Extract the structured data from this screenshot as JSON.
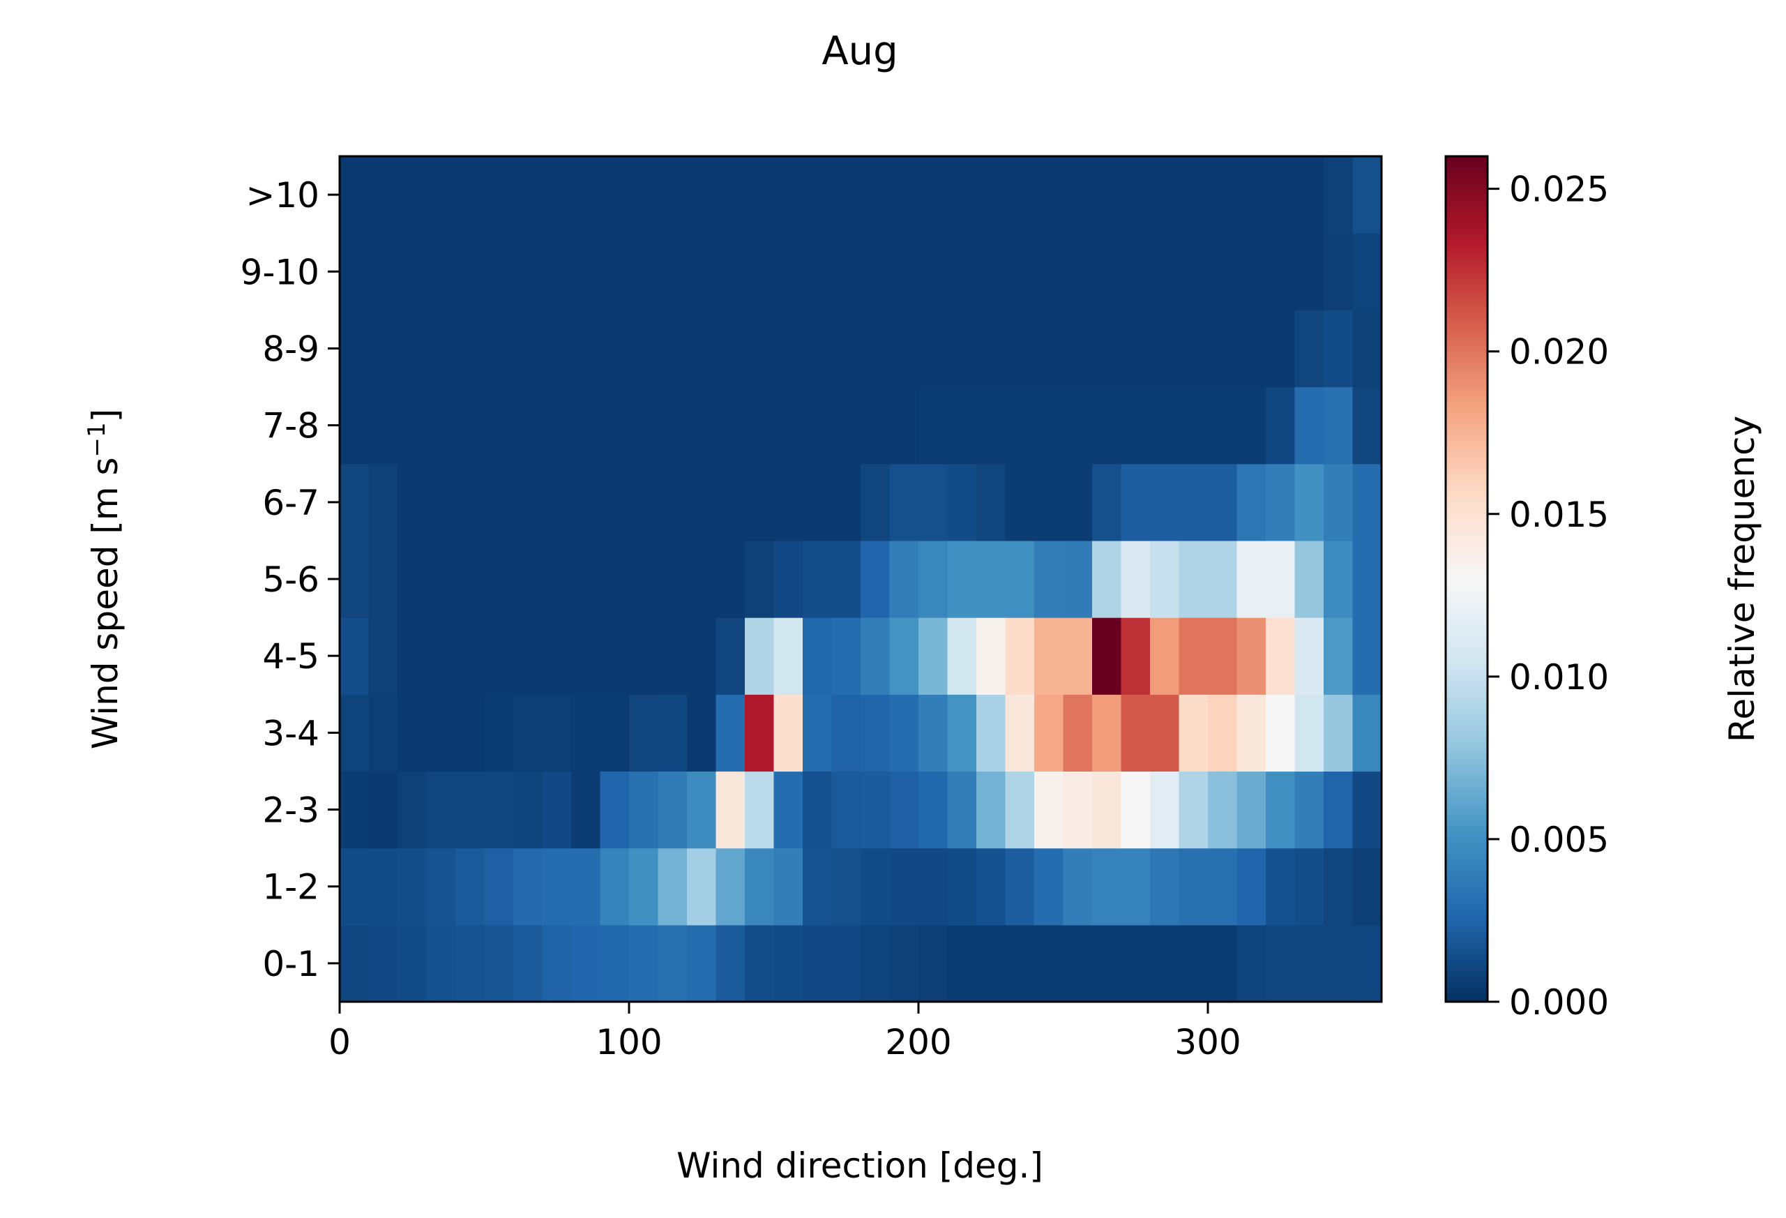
{
  "chart_data": {
    "type": "heatmap",
    "title": "Aug",
    "xlabel": "Wind direction [deg.]",
    "ylabel": "Wind speed [m s",
    "ylabel_sup": "−1",
    "ylabel_tail": "]",
    "xlim": [
      0,
      360
    ],
    "x_ticks": [
      0,
      100,
      200,
      300
    ],
    "x_tick_labels": [
      "0",
      "100",
      "200",
      "300"
    ],
    "x_bin_width": 10,
    "y_categories": [
      "0-1",
      "1-2",
      "2-3",
      "3-4",
      "4-5",
      "5-6",
      "6-7",
      "7-8",
      "8-9",
      "9-10",
      ">10"
    ],
    "colorbar": {
      "label": "Relative frequency",
      "colormap": "RdBu_r",
      "range": [
        0,
        0.026
      ],
      "ticks": [
        0.0,
        0.005,
        0.01,
        0.015,
        0.02,
        0.025
      ],
      "tick_labels": [
        "0.000",
        "0.005",
        "0.010",
        "0.015",
        "0.020",
        "0.025"
      ]
    },
    "grid": false,
    "values": [
      [
        0.0011,
        0.0012,
        0.0013,
        0.0016,
        0.0017,
        0.0018,
        0.002,
        0.0024,
        0.0026,
        0.0027,
        0.003,
        0.0032,
        0.003,
        0.002,
        0.0014,
        0.0013,
        0.0012,
        0.0012,
        0.0009,
        0.0008,
        0.0007,
        0.0006,
        0.0006,
        0.0006,
        0.0006,
        0.0006,
        0.0006,
        0.0006,
        0.0006,
        0.0006,
        0.0006,
        0.0009,
        0.001,
        0.001,
        0.001,
        0.0011
      ],
      [
        0.0013,
        0.0013,
        0.0014,
        0.0017,
        0.002,
        0.0023,
        0.0028,
        0.003,
        0.003,
        0.0043,
        0.005,
        0.0068,
        0.0085,
        0.0062,
        0.0045,
        0.004,
        0.0017,
        0.0015,
        0.0013,
        0.0012,
        0.0012,
        0.0013,
        0.0016,
        0.0022,
        0.003,
        0.004,
        0.0042,
        0.0042,
        0.0036,
        0.0032,
        0.0032,
        0.0026,
        0.0016,
        0.0014,
        0.001,
        0.0007
      ],
      [
        0.0006,
        0.0005,
        0.0008,
        0.001,
        0.001,
        0.001,
        0.0009,
        0.0012,
        0.0006,
        0.0026,
        0.0032,
        0.0038,
        0.0048,
        0.0145,
        0.0095,
        0.003,
        0.0016,
        0.002,
        0.0021,
        0.0023,
        0.0027,
        0.004,
        0.0068,
        0.009,
        0.0135,
        0.014,
        0.0145,
        0.013,
        0.0115,
        0.009,
        0.0075,
        0.0065,
        0.005,
        0.004,
        0.0025,
        0.0012
      ],
      [
        0.0009,
        0.0007,
        0.0005,
        0.0005,
        0.0005,
        0.0006,
        0.0007,
        0.0007,
        0.0006,
        0.0006,
        0.001,
        0.0011,
        0.0005,
        0.003,
        0.0235,
        0.0152,
        0.003,
        0.0024,
        0.0025,
        0.003,
        0.004,
        0.0052,
        0.0088,
        0.0145,
        0.018,
        0.02,
        0.0185,
        0.021,
        0.021,
        0.0155,
        0.016,
        0.0145,
        0.013,
        0.0105,
        0.008,
        0.0045
      ],
      [
        0.0014,
        0.0008,
        0.0005,
        0.0005,
        0.0005,
        0.0005,
        0.0005,
        0.0005,
        0.0005,
        0.0005,
        0.0005,
        0.0005,
        0.0005,
        0.001,
        0.009,
        0.0105,
        0.0027,
        0.003,
        0.004,
        0.0052,
        0.007,
        0.0105,
        0.0135,
        0.0155,
        0.0175,
        0.0175,
        0.026,
        0.0225,
        0.0185,
        0.02,
        0.02,
        0.019,
        0.015,
        0.011,
        0.0055,
        0.003
      ],
      [
        0.001,
        0.0008,
        0.0005,
        0.0005,
        0.0005,
        0.0005,
        0.0005,
        0.0005,
        0.0005,
        0.0005,
        0.0005,
        0.0005,
        0.0005,
        0.0005,
        0.0008,
        0.0012,
        0.0014,
        0.0014,
        0.0026,
        0.004,
        0.0045,
        0.005,
        0.005,
        0.005,
        0.004,
        0.0038,
        0.009,
        0.011,
        0.01,
        0.009,
        0.009,
        0.012,
        0.012,
        0.008,
        0.0048,
        0.003
      ],
      [
        0.001,
        0.0008,
        0.0005,
        0.0005,
        0.0005,
        0.0005,
        0.0005,
        0.0005,
        0.0005,
        0.0005,
        0.0005,
        0.0005,
        0.0005,
        0.0005,
        0.0005,
        0.0005,
        0.0005,
        0.0005,
        0.001,
        0.0015,
        0.0015,
        0.0013,
        0.001,
        0.0006,
        0.0006,
        0.0006,
        0.0015,
        0.0022,
        0.0022,
        0.0022,
        0.0022,
        0.0035,
        0.004,
        0.005,
        0.004,
        0.003
      ],
      [
        0.0005,
        0.0005,
        0.0005,
        0.0005,
        0.0005,
        0.0005,
        0.0005,
        0.0005,
        0.0005,
        0.0005,
        0.0005,
        0.0005,
        0.0005,
        0.0005,
        0.0005,
        0.0005,
        0.0005,
        0.0005,
        0.0005,
        0.0005,
        0.0006,
        0.0006,
        0.0006,
        0.0006,
        0.0006,
        0.0006,
        0.0006,
        0.0006,
        0.0006,
        0.0006,
        0.0006,
        0.0006,
        0.0011,
        0.003,
        0.0032,
        0.001
      ],
      [
        0.0005,
        0.0005,
        0.0005,
        0.0005,
        0.0005,
        0.0005,
        0.0005,
        0.0005,
        0.0005,
        0.0005,
        0.0005,
        0.0005,
        0.0005,
        0.0005,
        0.0005,
        0.0005,
        0.0005,
        0.0005,
        0.0005,
        0.0005,
        0.0005,
        0.0005,
        0.0005,
        0.0005,
        0.0005,
        0.0005,
        0.0005,
        0.0005,
        0.0005,
        0.0005,
        0.0005,
        0.0005,
        0.0005,
        0.001,
        0.0013,
        0.0008
      ],
      [
        0.0005,
        0.0005,
        0.0005,
        0.0005,
        0.0005,
        0.0005,
        0.0005,
        0.0005,
        0.0005,
        0.0005,
        0.0005,
        0.0005,
        0.0005,
        0.0005,
        0.0005,
        0.0005,
        0.0005,
        0.0005,
        0.0005,
        0.0005,
        0.0005,
        0.0005,
        0.0005,
        0.0005,
        0.0005,
        0.0005,
        0.0005,
        0.0005,
        0.0005,
        0.0005,
        0.0005,
        0.0005,
        0.0005,
        0.0005,
        0.0007,
        0.0009
      ],
      [
        0.0005,
        0.0005,
        0.0005,
        0.0005,
        0.0005,
        0.0005,
        0.0005,
        0.0005,
        0.0005,
        0.0005,
        0.0005,
        0.0005,
        0.0005,
        0.0005,
        0.0005,
        0.0005,
        0.0005,
        0.0005,
        0.0005,
        0.0005,
        0.0005,
        0.0005,
        0.0005,
        0.0005,
        0.0005,
        0.0005,
        0.0005,
        0.0005,
        0.0005,
        0.0005,
        0.0005,
        0.0005,
        0.0005,
        0.0005,
        0.0008,
        0.0015
      ]
    ]
  }
}
